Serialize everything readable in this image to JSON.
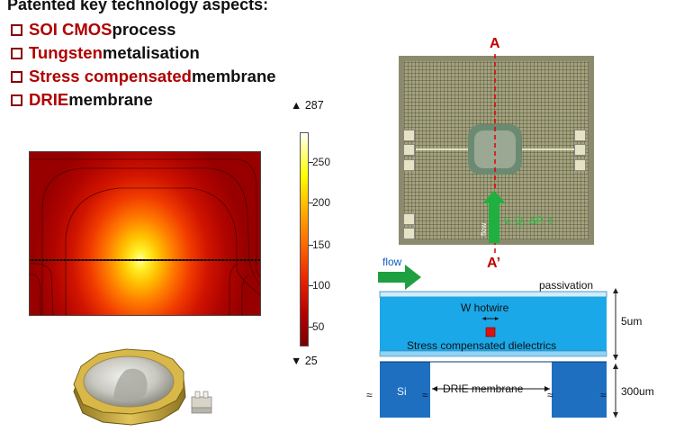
{
  "title": "Patented key technology aspects:",
  "bullets": [
    {
      "highlight": "SOI CMOS",
      "rest": " process"
    },
    {
      "highlight": "Tungsten",
      "rest": " metalisation"
    },
    {
      "highlight": "Stress compensated",
      "rest": " membrane"
    },
    {
      "highlight": "DRIE",
      "rest": " membrane"
    }
  ],
  "colorbar": {
    "max_label": "▲ 287",
    "min_label": "▼ 25",
    "ticks": [
      "250",
      "200",
      "150",
      "100",
      "50"
    ]
  },
  "chip_photo": {
    "section_top": "A",
    "section_bottom": "A’",
    "flow_small": "flow",
    "sensed": "v, Q, ΔP, τ"
  },
  "cross_section": {
    "flow": "flow",
    "passivation": "passivation",
    "hotwire": "W hotwire",
    "dielectrics": "Stress compensated dielectrics",
    "si": "Si",
    "drie": "DRIE membrane",
    "thickness_top": "5um",
    "thickness_bottom": "300um",
    "break_symbol": "≈"
  },
  "colors": {
    "highlight": "#b00000",
    "layer_blue": "#1aa8e8",
    "si_blue": "#1e6fc0",
    "flow_green": "#1fa040"
  }
}
